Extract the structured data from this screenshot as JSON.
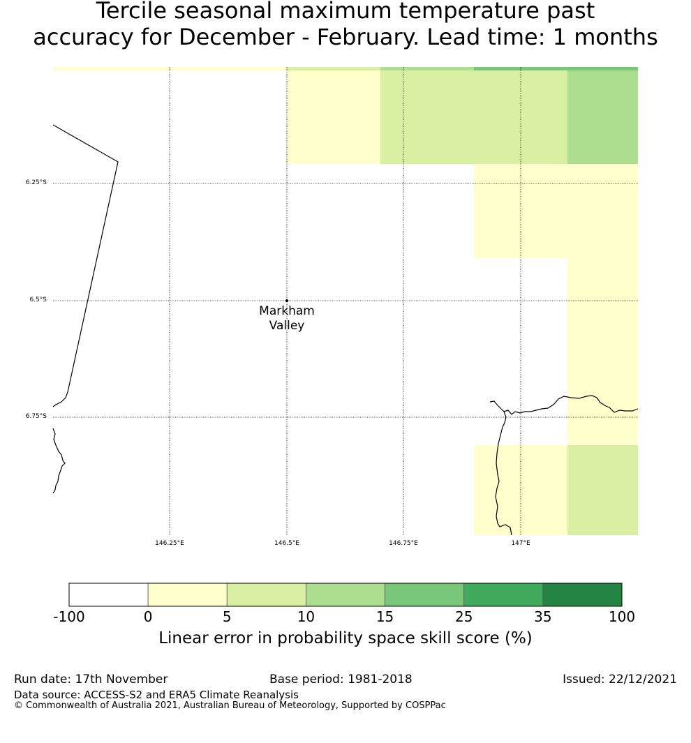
{
  "title": {
    "line1": "Tercile seasonal maximum temperature past",
    "line2": "accuracy for December - February. Lead time: 1 months"
  },
  "map": {
    "lat_labels": [
      "6.25°S",
      "6.5°S",
      "6.75°S"
    ],
    "lon_labels": [
      "146.25°E",
      "146.5°E",
      "146.75°E",
      "147°E"
    ],
    "place": {
      "name_line1": "Markham",
      "name_line2": "Valley"
    },
    "colors": {
      "c0_5": "#ffffcc",
      "c5_10": "#d9f0a3",
      "c10_15": "#addd8e",
      "c15_25": "#78c679",
      "c25_35": "#41ab5d",
      "c35_100": "#238443"
    }
  },
  "colorbar": {
    "ticks": [
      "-100",
      "0",
      "5",
      "10",
      "15",
      "25",
      "35",
      "100"
    ],
    "colors": [
      "#ffffff",
      "#ffffcc",
      "#d9f0a3",
      "#addd8e",
      "#78c679",
      "#41ab5d",
      "#238443"
    ],
    "label": "Linear error in probability space skill score (%)"
  },
  "footer": {
    "run_date": "Run date: 17th November",
    "base_period": "Base period: 1981-2018",
    "issued": "Issued: 22/12/2021",
    "data_source": "Data source: ACCESS-S2 and ERA5 Climate Reanalysis",
    "copyright": "© Commonwealth of Australia 2021, Australian Bureau of Meteorology, Supported by COSPPac"
  }
}
